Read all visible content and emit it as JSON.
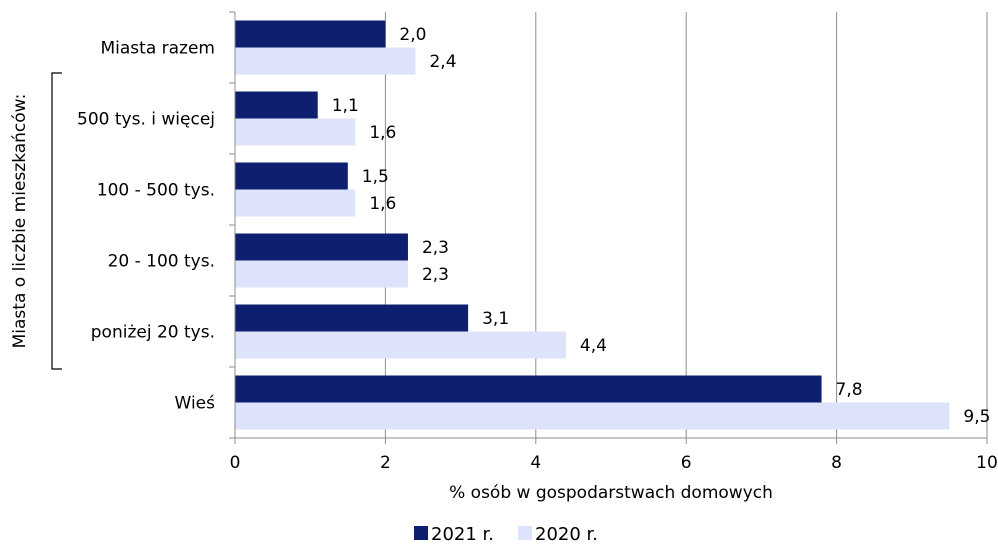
{
  "chart_data": {
    "type": "bar",
    "orientation": "horizontal",
    "categories": [
      "Miasta razem",
      "500 tys. i więcej",
      "100 - 500 tys.",
      "20 - 100 tys.",
      "poniżej 20 tys.",
      "Wieś"
    ],
    "series": [
      {
        "name": "2021 r.",
        "values": [
          2.0,
          1.1,
          1.5,
          2.3,
          3.1,
          7.8
        ],
        "labels": [
          "2,0",
          "1,1",
          "1,5",
          "2,3",
          "3,1",
          "7,8"
        ],
        "color": "#0d1f6e"
      },
      {
        "name": "2020 r.",
        "values": [
          2.4,
          1.6,
          1.6,
          2.3,
          4.4,
          9.5
        ],
        "labels": [
          "2,4",
          "1,6",
          "1,6",
          "2,3",
          "4,4",
          "9,5"
        ],
        "color": "#dce3fa"
      }
    ],
    "xlabel": "% osób w gospodarstwach domowych",
    "xlim": [
      0,
      10
    ],
    "xticks": [
      0,
      2,
      4,
      6,
      8,
      10
    ],
    "group_label": "Miasta o liczbie mieszkańców:",
    "grid": true,
    "legend": "bottom"
  }
}
